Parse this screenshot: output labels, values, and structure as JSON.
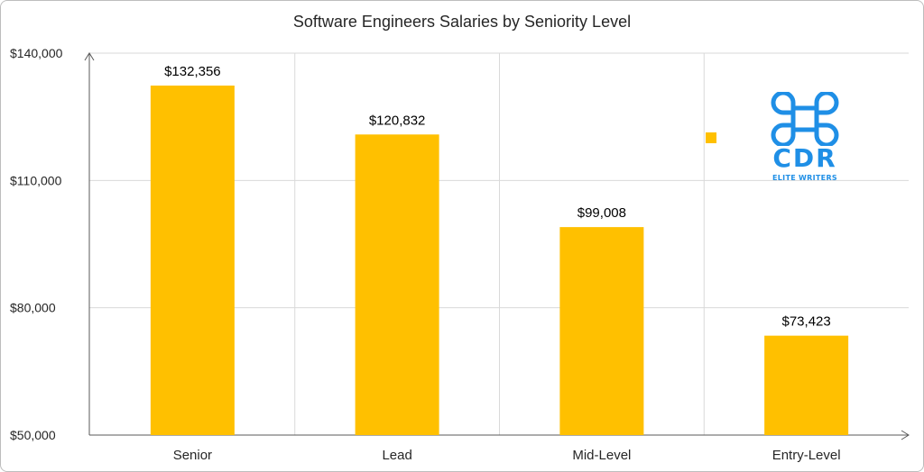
{
  "chart_data": {
    "type": "bar",
    "title": "Software Engineers Salaries by Seniority Level",
    "categories": [
      "Senior",
      "Lead",
      "Mid-Level",
      "Entry-Level"
    ],
    "values": [
      132356,
      120832,
      99008,
      73423
    ],
    "data_labels": [
      "$132,356",
      "$120,832",
      "$99,008",
      "$73,423"
    ],
    "y_ticks": [
      50000,
      80000,
      110000,
      140000
    ],
    "y_tick_labels": [
      "$50,000",
      "$80,000",
      "$110,000",
      "$140,000"
    ],
    "ylim": [
      50000,
      140000
    ],
    "xlabel": "",
    "ylabel": "",
    "grid": true,
    "legend": "top-right",
    "bar_color": "#ffc000"
  },
  "watermark": {
    "brand": "CDR",
    "tagline": "ELITE WRITERS",
    "color": "#1f8fe6",
    "icon": "command-key-icon"
  }
}
